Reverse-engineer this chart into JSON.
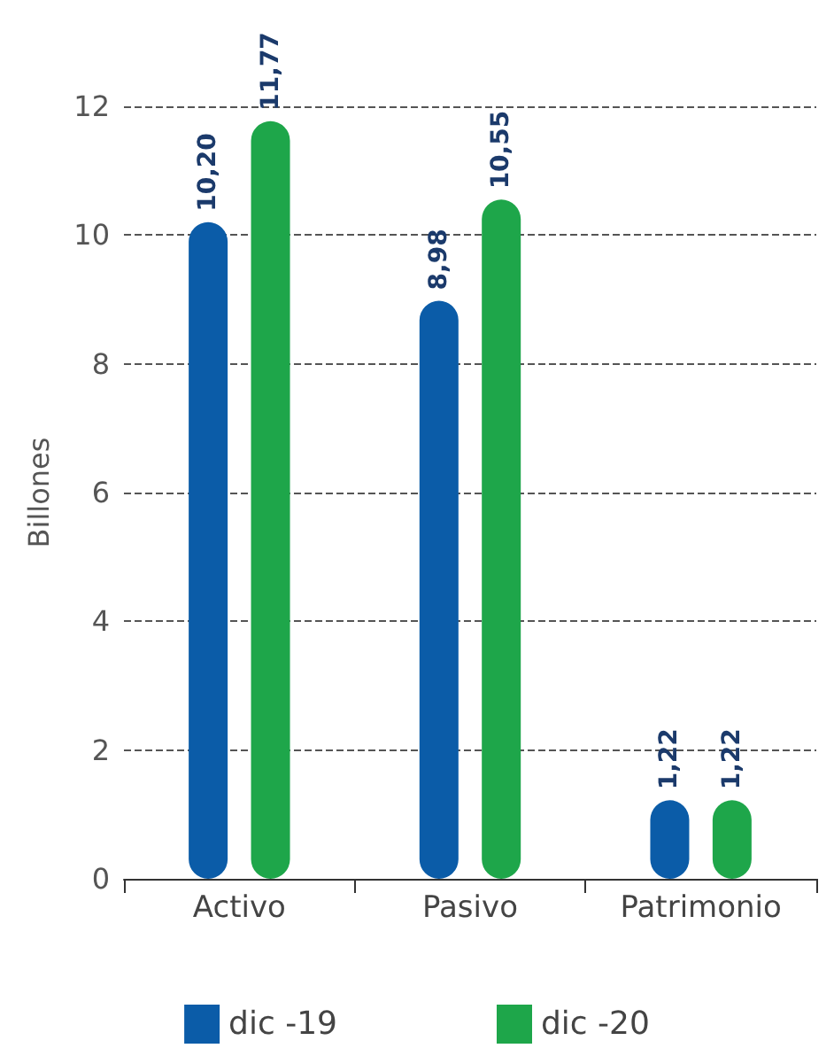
{
  "chart_data": {
    "type": "bar",
    "ylabel": "Billones",
    "categories": [
      "Activo",
      "Pasivo",
      "Patrimonio"
    ],
    "series": [
      {
        "name": "dic -19",
        "color": "#0b5ca8",
        "values": [
          10.2,
          8.98,
          1.22
        ],
        "value_labels": [
          "10,20",
          "8,98",
          "1,22"
        ]
      },
      {
        "name": "dic -20",
        "color": "#1ea64a",
        "values": [
          11.77,
          10.55,
          1.22
        ],
        "value_labels": [
          "11,77",
          "10,55",
          "1,22"
        ]
      }
    ],
    "ylim": [
      0,
      12
    ],
    "yticks": [
      0,
      2,
      4,
      6,
      8,
      10,
      12
    ],
    "grid": "y",
    "legend": "bottom"
  }
}
